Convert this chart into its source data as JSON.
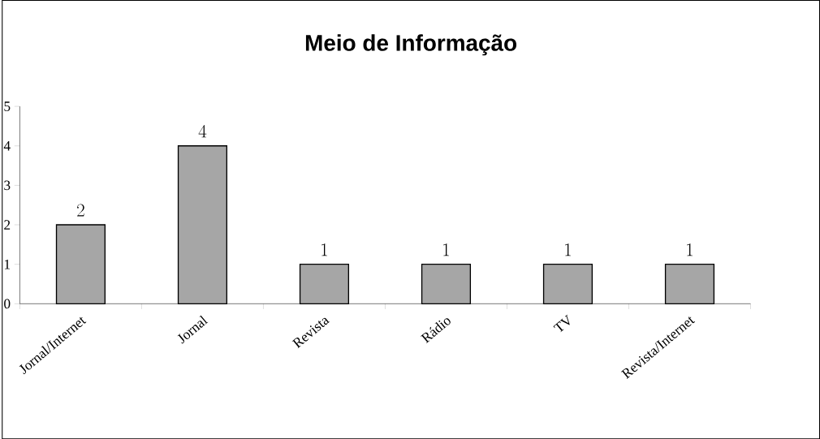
{
  "chart_data": {
    "type": "bar",
    "title": "Meio de Informação",
    "categories": [
      "Jornal/Internet",
      "Jornal",
      "Revista",
      "Rádio",
      "TV",
      "Revista/Internet"
    ],
    "values": [
      2,
      4,
      1,
      1,
      1,
      1
    ],
    "color": "#a6a6a6",
    "ylim": [
      0,
      5
    ],
    "yticks": [
      0,
      1,
      2,
      3,
      4,
      5
    ],
    "data_labels": true
  }
}
